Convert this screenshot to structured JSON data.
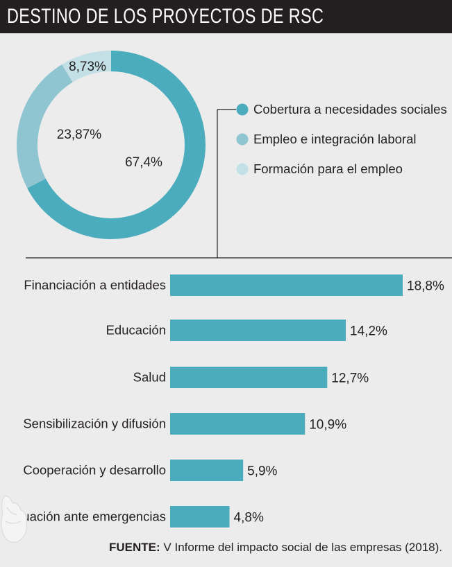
{
  "header": {
    "title": "DESTINO DE LOS PROYECTOS DE RSC"
  },
  "colors": {
    "dark": "#4aacbc",
    "mid": "#8ec5d0",
    "light": "#c2e0e6",
    "bar": "#4aacbc",
    "background": "#ececec",
    "header": "#231f20"
  },
  "chart_data": [
    {
      "type": "pie",
      "donut": true,
      "categories": [
        "Cobertura a necesidades sociales",
        "Empleo e integración laboral",
        "Formación para el empleo"
      ],
      "values": [
        67.4,
        23.87,
        8.73
      ],
      "value_labels": [
        "67,4%",
        "23,87%",
        "8,73%"
      ],
      "legend_position": "right"
    },
    {
      "type": "bar",
      "orientation": "horizontal",
      "categories": [
        "Financiación a entidades",
        "Educación",
        "Salud",
        "Sensibilización y difusión",
        "Cooperación y desarrollo",
        "Actuación ante emergencias"
      ],
      "values": [
        18.8,
        14.2,
        12.7,
        10.9,
        5.9,
        4.8
      ],
      "value_labels": [
        "18,8%",
        "14,2%",
        "12,7%",
        "10,9%",
        "5,9%",
        "4,8%"
      ]
    }
  ],
  "footer": {
    "source_label": "FUENTE:",
    "source_text": " V Informe del impacto social de las empresas (2018)."
  }
}
